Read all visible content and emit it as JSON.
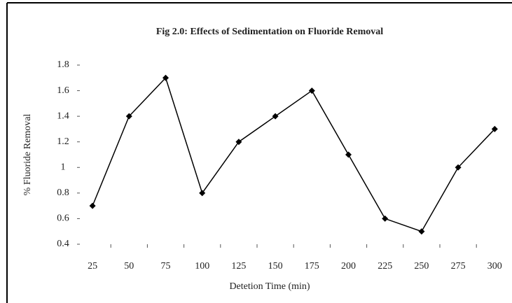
{
  "chart_data": {
    "type": "line",
    "title": "Fig 2.0: Effects of Sedimentation on Fluoride Removal",
    "x_label": "Detetion Time (min)",
    "y_label": "% Fluoride Removal",
    "categories": [
      "25",
      "50",
      "75",
      "100",
      "125",
      "150",
      "175",
      "200",
      "225",
      "250",
      "275",
      "300"
    ],
    "series": [
      {
        "name": "% Fluoride Removal",
        "color": "#000000",
        "values": [
          0.7,
          1.4,
          1.7,
          0.8,
          1.2,
          1.4,
          1.6,
          1.1,
          0.6,
          0.5,
          1.0,
          1.3
        ]
      }
    ],
    "ylim": [
      0.4,
      1.8
    ],
    "yticks": [
      0.4,
      0.6,
      0.8,
      1,
      1.2,
      1.4,
      1.6,
      1.8
    ]
  }
}
